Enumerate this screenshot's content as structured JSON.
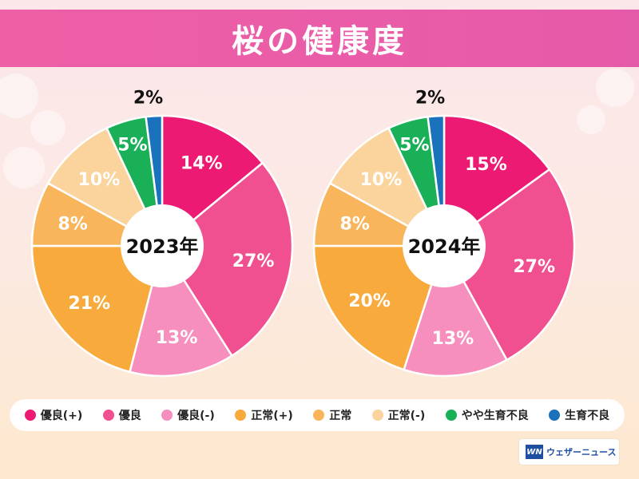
{
  "title": "桜の健康度",
  "colors": {
    "優良(+)": "#ec1a72",
    "優良": "#f0508f",
    "優良(-)": "#f68fbd",
    "正常(+)": "#f8aa3c",
    "正常": "#f9b55c",
    "正常(-)": "#fbd49d",
    "やや生育不良": "#1ab057",
    "生育不良": "#1a72bd"
  },
  "legend": [
    {
      "label": "優良(+)",
      "color": "#ec1a72"
    },
    {
      "label": "優良",
      "color": "#f0508f"
    },
    {
      "label": "優良(-)",
      "color": "#f68fbd"
    },
    {
      "label": "正常(+)",
      "color": "#f8aa3c"
    },
    {
      "label": "正常",
      "color": "#f9b55c"
    },
    {
      "label": "正常(-)",
      "color": "#fbd49d"
    },
    {
      "label": "やや生育不良",
      "color": "#1ab057"
    },
    {
      "label": "生育不良",
      "color": "#1a72bd"
    }
  ],
  "chart_data": [
    {
      "type": "pie",
      "title": "2023年",
      "categories": [
        "優良(+)",
        "優良",
        "優良(-)",
        "正常(+)",
        "正常",
        "正常(-)",
        "やや生育不良",
        "生育不良"
      ],
      "values": [
        14,
        27,
        13,
        21,
        8,
        10,
        5,
        2
      ],
      "labels": [
        "14%",
        "27%",
        "13%",
        "21%",
        "8%",
        "10%",
        "5%",
        "2%"
      ]
    },
    {
      "type": "pie",
      "title": "2024年",
      "categories": [
        "優良(+)",
        "優良",
        "優良(-)",
        "正常(+)",
        "正常",
        "正常(-)",
        "やや生育不良",
        "生育不良"
      ],
      "values": [
        15,
        27,
        13,
        20,
        8,
        10,
        5,
        2
      ],
      "labels": [
        "15%",
        "27%",
        "13%",
        "20%",
        "8%",
        "10%",
        "5%",
        "2%"
      ]
    }
  ],
  "logo": {
    "mark": "WN",
    "text": "ウェザーニュース"
  }
}
